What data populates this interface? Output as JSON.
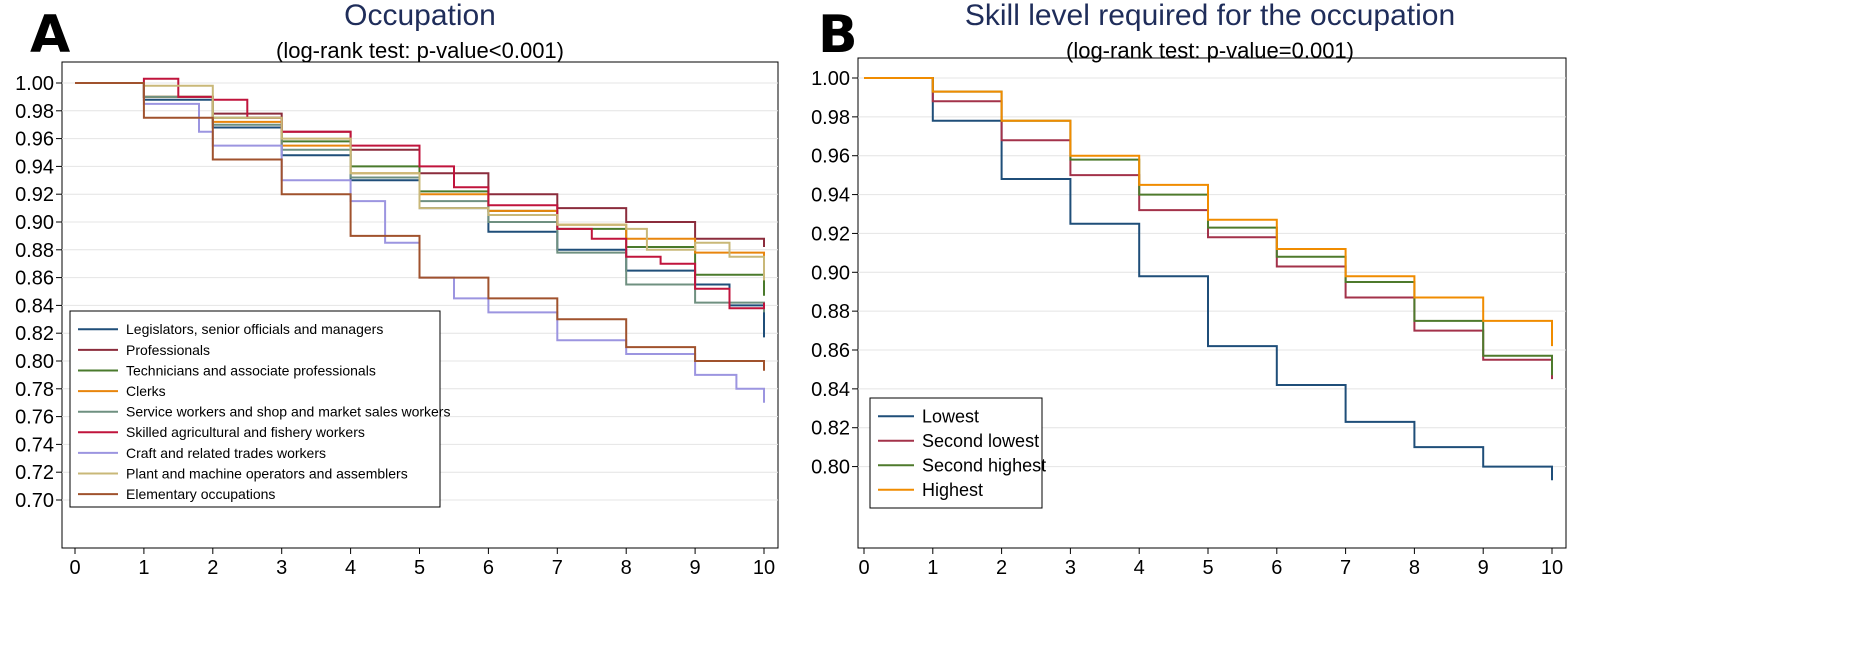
{
  "chart_data": [
    {
      "type": "line",
      "panel_label": "A",
      "title": "Occupation",
      "subtitle": "(log-rank test: p-value<0.001)",
      "xlim": [
        0,
        10
      ],
      "ylim": [
        0.7,
        1.0
      ],
      "x_ticks": [
        "0",
        "1",
        "2",
        "3",
        "4",
        "5",
        "6",
        "7",
        "8",
        "9",
        "10"
      ],
      "y_ticks": [
        "1.00",
        "0.98",
        "0.96",
        "0.94",
        "0.92",
        "0.90",
        "0.88",
        "0.86",
        "0.84",
        "0.82",
        "0.80",
        "0.78",
        "0.76",
        "0.74",
        "0.72",
        "0.70"
      ],
      "grid": true,
      "legend_position": "bottom-left",
      "series": [
        {
          "name": "Legislators, senior officials and managers",
          "color": "#1f4e79",
          "x": [
            0,
            1,
            2,
            3,
            4,
            5,
            6,
            7,
            8,
            9,
            9.5,
            10
          ],
          "y": [
            1.0,
            0.988,
            0.968,
            0.948,
            0.93,
            0.91,
            0.893,
            0.88,
            0.865,
            0.855,
            0.84,
            0.817
          ]
        },
        {
          "name": "Professionals",
          "color": "#8b2c3c",
          "x": [
            0,
            1,
            2,
            3,
            4,
            5,
            6,
            7,
            8,
            9,
            10
          ],
          "y": [
            1.0,
            0.99,
            0.978,
            0.965,
            0.952,
            0.935,
            0.92,
            0.91,
            0.9,
            0.888,
            0.882
          ]
        },
        {
          "name": "Technicians and associate professionals",
          "color": "#4a7a2c",
          "x": [
            0,
            1,
            2,
            3,
            4,
            5,
            6,
            7,
            8,
            9,
            10
          ],
          "y": [
            1.0,
            0.99,
            0.975,
            0.958,
            0.94,
            0.922,
            0.908,
            0.895,
            0.882,
            0.862,
            0.847
          ]
        },
        {
          "name": "Clerks",
          "color": "#e8850c",
          "x": [
            0,
            1,
            2,
            3,
            4,
            5,
            6,
            7,
            8,
            9,
            10
          ],
          "y": [
            1.0,
            0.99,
            0.972,
            0.955,
            0.935,
            0.92,
            0.908,
            0.898,
            0.888,
            0.878,
            0.86
          ]
        },
        {
          "name": "Service workers and shop and market sales workers",
          "color": "#6f9080",
          "x": [
            0,
            1,
            2,
            3,
            4,
            5,
            6,
            7,
            8,
            9,
            10
          ],
          "y": [
            1.0,
            0.99,
            0.97,
            0.952,
            0.932,
            0.915,
            0.9,
            0.878,
            0.855,
            0.842,
            0.835
          ]
        },
        {
          "name": "Skilled agricultural and fishery workers",
          "color": "#c0143c",
          "x": [
            0,
            1,
            1.5,
            2,
            2.5,
            3,
            4,
            5,
            5.5,
            6,
            7,
            7.5,
            8,
            8.5,
            9,
            9.5,
            10
          ],
          "y": [
            1.0,
            1.003,
            0.99,
            0.988,
            0.975,
            0.965,
            0.955,
            0.94,
            0.925,
            0.912,
            0.895,
            0.888,
            0.875,
            0.87,
            0.852,
            0.838,
            0.842
          ]
        },
        {
          "name": "Craft and related trades workers",
          "color": "#9c95e0",
          "x": [
            0,
            1,
            1.8,
            2,
            3,
            4,
            4.5,
            5,
            5.5,
            6,
            7,
            8,
            9,
            9.6,
            10
          ],
          "y": [
            1.0,
            0.985,
            0.965,
            0.955,
            0.93,
            0.915,
            0.885,
            0.86,
            0.845,
            0.835,
            0.815,
            0.805,
            0.79,
            0.78,
            0.77
          ]
        },
        {
          "name": "Plant and machine operators and assemblers",
          "color": "#c9b878",
          "x": [
            0,
            1,
            2,
            3,
            4,
            5,
            6,
            7,
            8,
            8.3,
            9,
            9.5,
            10
          ],
          "y": [
            1.0,
            0.998,
            0.975,
            0.96,
            0.935,
            0.91,
            0.905,
            0.898,
            0.895,
            0.88,
            0.885,
            0.875,
            0.858
          ]
        },
        {
          "name": "Elementary occupations",
          "color": "#a0522d",
          "x": [
            0,
            1,
            2,
            3,
            4,
            5,
            6,
            7,
            8,
            9,
            10
          ],
          "y": [
            1.0,
            0.975,
            0.945,
            0.92,
            0.89,
            0.86,
            0.845,
            0.83,
            0.81,
            0.8,
            0.793
          ]
        }
      ]
    },
    {
      "type": "line",
      "panel_label": "B",
      "title": "Skill level required for the occupation",
      "subtitle": "(log-rank test: p-value=0.001)",
      "xlim": [
        0,
        10
      ],
      "ylim": [
        0.79,
        1.0
      ],
      "x_ticks": [
        "0",
        "1",
        "2",
        "3",
        "4",
        "5",
        "6",
        "7",
        "8",
        "9",
        "10"
      ],
      "y_ticks": [
        "1.00",
        "0.98",
        "0.96",
        "0.94",
        "0.92",
        "0.90",
        "0.88",
        "0.86",
        "0.84",
        "0.82",
        "0.80"
      ],
      "grid": true,
      "legend_position": "bottom-left",
      "series": [
        {
          "name": "Lowest",
          "color": "#1f4e79",
          "x": [
            0,
            1,
            2,
            3,
            4,
            5,
            6,
            7,
            8,
            9,
            10
          ],
          "y": [
            1.0,
            0.978,
            0.948,
            0.925,
            0.898,
            0.862,
            0.842,
            0.823,
            0.81,
            0.8,
            0.793
          ]
        },
        {
          "name": "Second lowest",
          "color": "#a3324a",
          "x": [
            0,
            1,
            2,
            3,
            4,
            5,
            6,
            7,
            8,
            9,
            10
          ],
          "y": [
            1.0,
            0.988,
            0.968,
            0.95,
            0.932,
            0.918,
            0.903,
            0.887,
            0.87,
            0.855,
            0.845
          ]
        },
        {
          "name": "Second highest",
          "color": "#4e7a2c",
          "x": [
            0,
            1,
            2,
            3,
            4,
            5,
            6,
            7,
            8,
            9,
            10
          ],
          "y": [
            1.0,
            0.993,
            0.978,
            0.958,
            0.94,
            0.923,
            0.908,
            0.895,
            0.875,
            0.857,
            0.847
          ]
        },
        {
          "name": "Highest",
          "color": "#f08c00",
          "x": [
            0,
            1,
            2,
            3,
            4,
            5,
            6,
            7,
            8,
            9,
            10
          ],
          "y": [
            1.0,
            0.993,
            0.978,
            0.96,
            0.945,
            0.927,
            0.912,
            0.898,
            0.887,
            0.875,
            0.862
          ]
        }
      ]
    }
  ]
}
